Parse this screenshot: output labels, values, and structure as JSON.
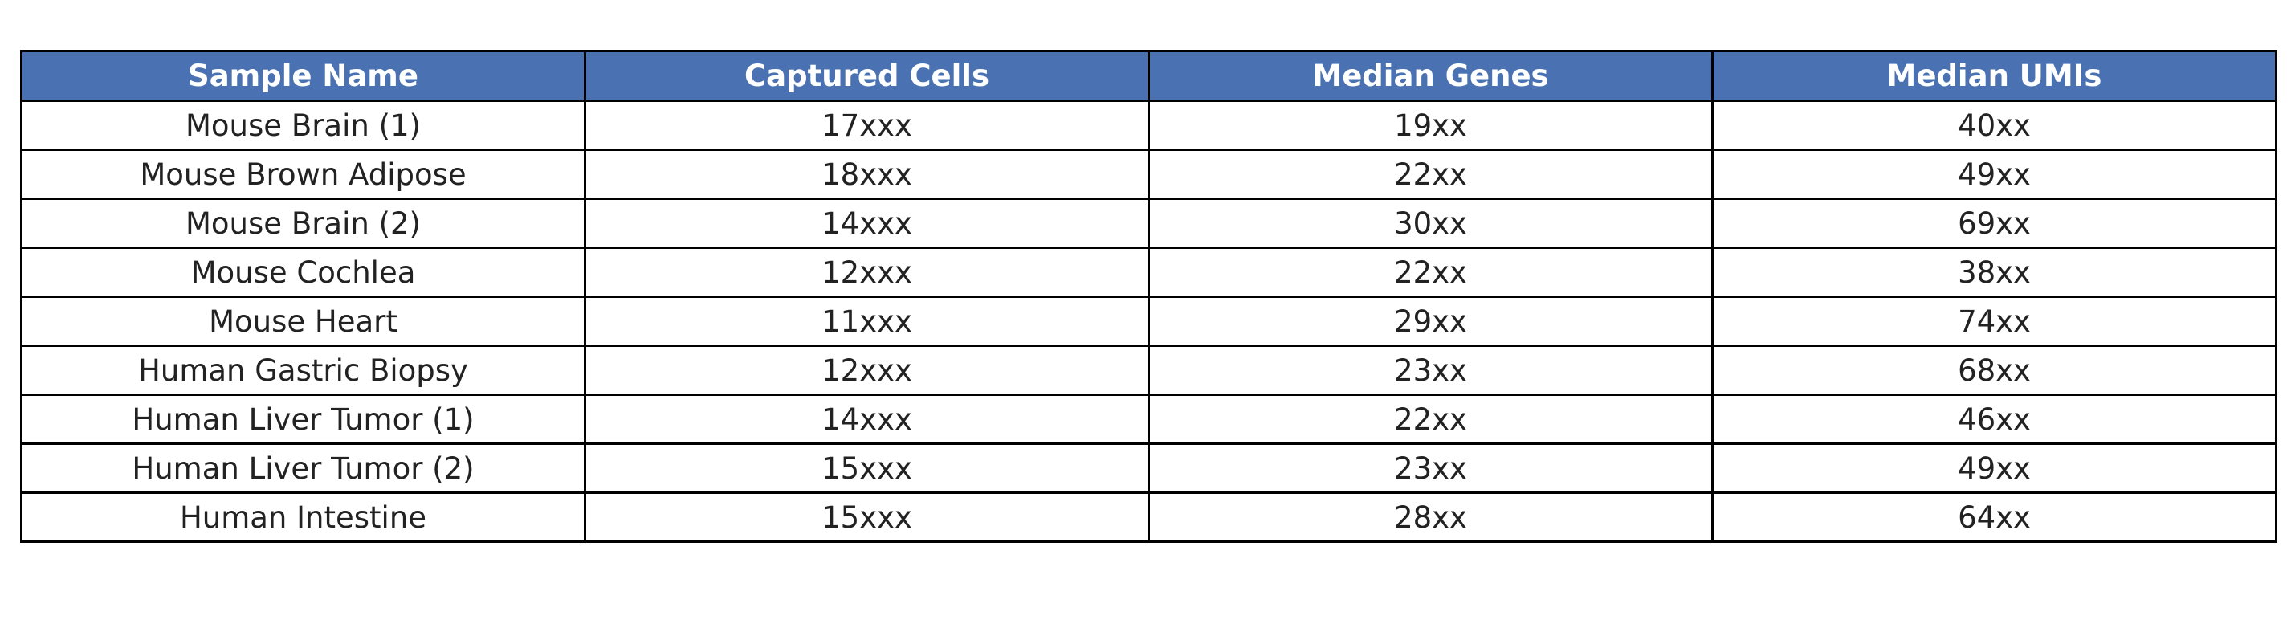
{
  "table": {
    "header": [
      "Sample Name",
      "Captured Cells",
      "Median Genes",
      "Median UMIs"
    ],
    "rows": [
      [
        "Mouse Brain (1)",
        "17xxx",
        "19xx",
        "40xx"
      ],
      [
        "Mouse Brown Adipose",
        "18xxx",
        "22xx",
        "49xx"
      ],
      [
        "Mouse Brain (2)",
        "14xxx",
        "30xx",
        "69xx"
      ],
      [
        "Mouse Cochlea",
        "12xxx",
        "22xx",
        "38xx"
      ],
      [
        "Mouse Heart",
        "11xxx",
        "29xx",
        "74xx"
      ],
      [
        "Human Gastric Biopsy",
        "12xxx",
        "23xx",
        "68xx"
      ],
      [
        "Human Liver Tumor (1)",
        "14xxx",
        "22xx",
        "46xx"
      ],
      [
        "Human Liver Tumor (2)",
        "15xxx",
        "23xx",
        "49xx"
      ],
      [
        "Human Intestine",
        "15xxx",
        "28xx",
        "64xx"
      ]
    ]
  }
}
